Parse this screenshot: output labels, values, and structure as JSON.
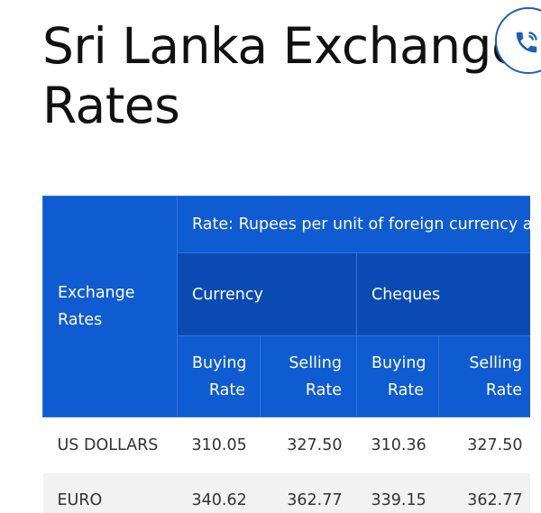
{
  "header": {
    "title": "Sri Lanka Exchange Rates"
  },
  "table": {
    "corner": "Exchange Rates",
    "note": "Rate: Rupees per unit of foreign currency as",
    "groups": [
      "Currency",
      "Cheques"
    ],
    "columns": [
      "Buying Rate",
      "Selling Rate",
      "Buying Rate",
      "Selling Rate"
    ],
    "rows": [
      [
        "US DOLLARS",
        "310.05",
        "327.50",
        "310.36",
        "327.50"
      ],
      [
        "EURO",
        "340.62",
        "362.77",
        "339.15",
        "362.77"
      ]
    ]
  }
}
